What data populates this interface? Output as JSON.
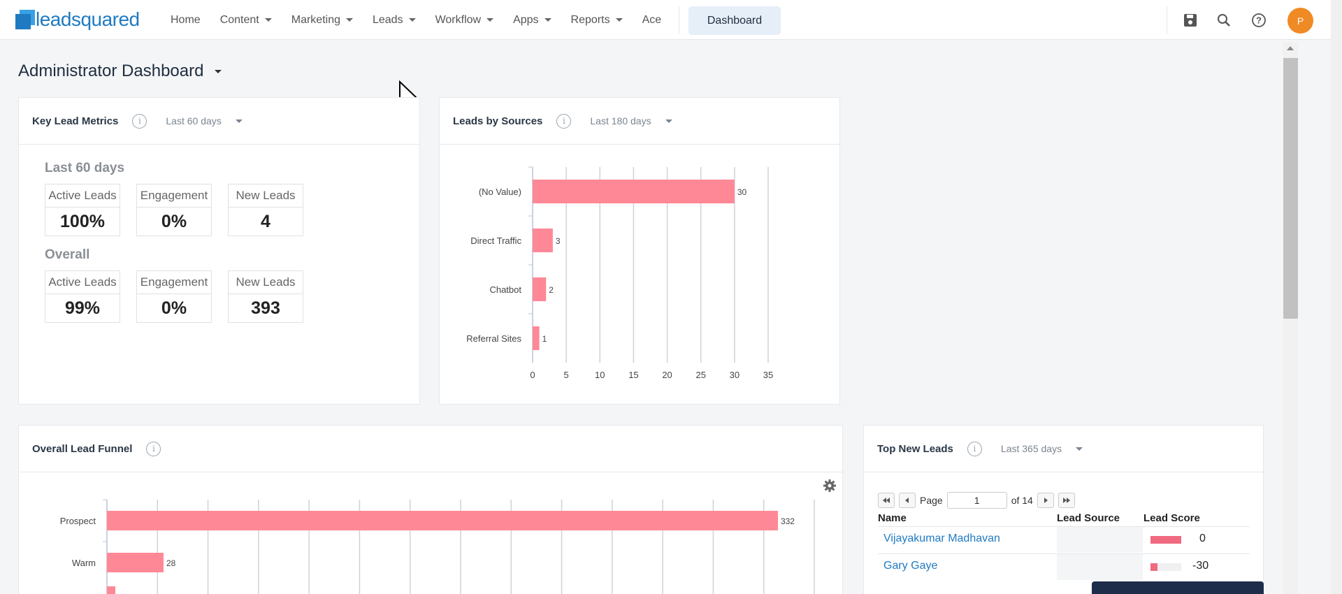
{
  "nav": {
    "logo_text": "leadsquared",
    "items": [
      {
        "label": "Home",
        "dropdown": false
      },
      {
        "label": "Content",
        "dropdown": true
      },
      {
        "label": "Marketing",
        "dropdown": true
      },
      {
        "label": "Leads",
        "dropdown": true
      },
      {
        "label": "Workflow",
        "dropdown": true
      },
      {
        "label": "Apps",
        "dropdown": true
      },
      {
        "label": "Reports",
        "dropdown": true
      },
      {
        "label": "Ace",
        "dropdown": false
      }
    ],
    "active_button": "Dashboard",
    "icons": [
      "save-icon",
      "search-icon",
      "help-icon"
    ],
    "avatar_initial": "P",
    "avatar_color": "#f08a24"
  },
  "page": {
    "title": "Administrator Dashboard"
  },
  "key_metrics": {
    "title": "Key Lead Metrics",
    "period": "Last 60 days",
    "sections": [
      {
        "title": "Last 60 days",
        "metrics": [
          {
            "label": "Active Leads",
            "value": "100%"
          },
          {
            "label": "Engagement",
            "value": "0%"
          },
          {
            "label": "New Leads",
            "value": "4"
          }
        ]
      },
      {
        "title": "Overall",
        "metrics": [
          {
            "label": "Active Leads",
            "value": "99%"
          },
          {
            "label": "Engagement",
            "value": "0%"
          },
          {
            "label": "New Leads",
            "value": "393"
          }
        ]
      }
    ]
  },
  "leads_by_sources": {
    "title": "Leads by Sources",
    "period": "Last 180 days",
    "chart_data": {
      "type": "bar",
      "orientation": "horizontal",
      "categories": [
        "(No Value)",
        "Direct Traffic",
        "Chatbot",
        "Referral Sites"
      ],
      "values": [
        30,
        3,
        2,
        1
      ],
      "xlim": [
        0,
        35
      ],
      "xticks": [
        0,
        5,
        10,
        15,
        20,
        25,
        30,
        35
      ],
      "grid": true,
      "color": "#ff8896"
    }
  },
  "lead_funnel": {
    "title": "Overall Lead Funnel",
    "settings_icon": "gear-icon",
    "chart_data": {
      "type": "bar",
      "orientation": "horizontal",
      "categories": [
        "Prospect",
        "Warm"
      ],
      "values": [
        332,
        28
      ],
      "grid": true,
      "color": "#ff8896"
    }
  },
  "top_new_leads": {
    "title": "Top New Leads",
    "period": "Last 365 days",
    "pager": {
      "page_label": "Page",
      "page": "1",
      "of_label": "of 14"
    },
    "columns": [
      "Name",
      "Lead Source",
      "Lead Score"
    ],
    "rows": [
      {
        "name": "Vijayakumar Madhavan",
        "source": "",
        "score": "0",
        "bar_fraction": 1.0
      },
      {
        "name": "Gary Gaye",
        "source": "",
        "score": "-30",
        "bar_fraction": 0.22
      }
    ]
  }
}
